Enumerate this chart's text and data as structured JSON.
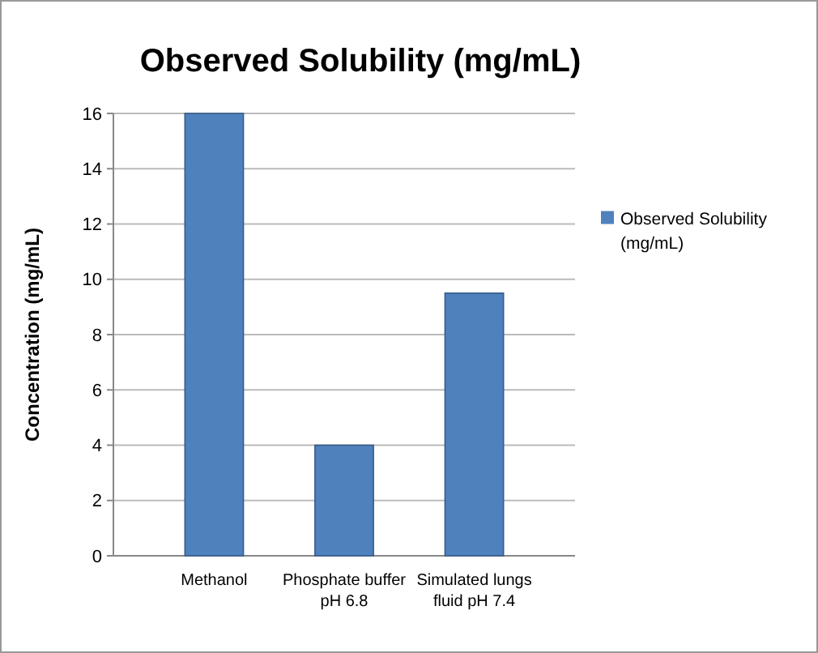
{
  "chart_data": {
    "type": "bar",
    "title": "Observed Solubility (mg/mL)",
    "ylabel": "Concentration (mg/mL)",
    "categories": [
      "Methanol",
      "Phosphate buffer pH 6.8",
      "Simulated lungs fluid  pH 7.4"
    ],
    "series": [
      {
        "name": "Observed Solubility (mg/mL)",
        "color": "#4f81bd",
        "values": [
          16,
          4,
          9.5
        ]
      }
    ],
    "ylim": [
      0,
      16
    ],
    "yticks": [
      0,
      2,
      4,
      6,
      8,
      10,
      12,
      14,
      16
    ],
    "grid": "y",
    "legend": "right"
  }
}
